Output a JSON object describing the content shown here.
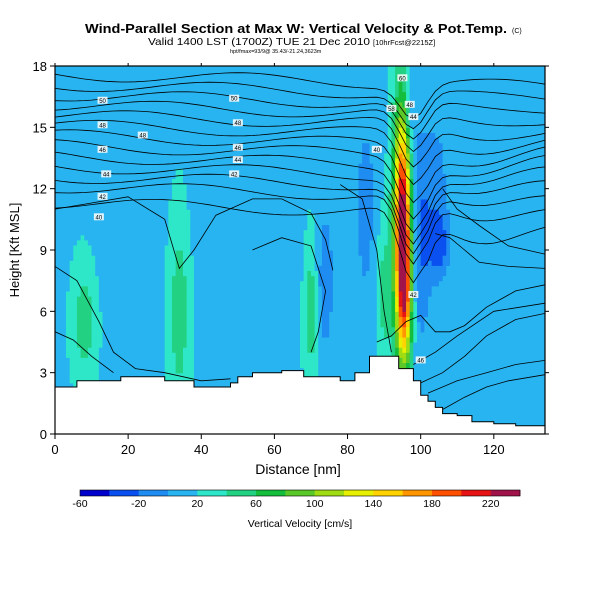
{
  "chart_data": {
    "type": "heatmap",
    "title": "Wind-Parallel Section at Max W: Vertical Velocity & Pot.Temp.",
    "title_mark": "(C)",
    "subtitle": "Valid 1400 LST (1700Z) TUE 21 Dec 2010",
    "subtitle_note": "[10hrFcst@2215Z]",
    "fine_print": "hpt/fmax=93/9@ 35.43/-21.24,3623m",
    "xlabel": "Distance [nm]",
    "ylabel": "Height [Kft MSL]",
    "xlim": [
      0,
      134
    ],
    "ylim": [
      0,
      18
    ],
    "x_ticks": [
      0,
      20,
      40,
      60,
      80,
      100,
      120
    ],
    "y_ticks": [
      0,
      3,
      6,
      9,
      12,
      15,
      18
    ],
    "colorbar": {
      "label": "Vertical Velocity [cm/s]",
      "tick_labels": [
        "-60",
        "-20",
        "20",
        "60",
        "100",
        "140",
        "180",
        "220"
      ],
      "bins": [
        -60,
        -40,
        -20,
        0,
        20,
        40,
        60,
        80,
        100,
        120,
        140,
        160,
        180,
        200,
        220,
        240
      ],
      "colors": [
        "#0000cc",
        "#0a50f0",
        "#1e8cf0",
        "#28b4f0",
        "#2ee6c8",
        "#22d282",
        "#14be3c",
        "#5ac828",
        "#a0dc14",
        "#e6f000",
        "#ffd200",
        "#ff9600",
        "#ff5000",
        "#e61414",
        "#a0144b"
      ]
    },
    "theta_labels": [
      "50",
      "48",
      "46",
      "44",
      "42",
      "40",
      "50",
      "48",
      "46",
      "44",
      "42",
      "48",
      "60",
      "58",
      "48",
      "44",
      "40",
      "42",
      "46"
    ],
    "terrain": [
      [
        0,
        2.3
      ],
      [
        6,
        2.3
      ],
      [
        6,
        2.6
      ],
      [
        18,
        2.6
      ],
      [
        18,
        2.8
      ],
      [
        30,
        2.8
      ],
      [
        30,
        2.6
      ],
      [
        38,
        2.6
      ],
      [
        38,
        2.3
      ],
      [
        48,
        2.3
      ],
      [
        48,
        2.5
      ],
      [
        50,
        2.5
      ],
      [
        50,
        2.8
      ],
      [
        54,
        2.8
      ],
      [
        54,
        3.0
      ],
      [
        62,
        3.0
      ],
      [
        62,
        3.1
      ],
      [
        68,
        3.1
      ],
      [
        68,
        2.8
      ],
      [
        78,
        2.8
      ],
      [
        78,
        2.6
      ],
      [
        82,
        2.6
      ],
      [
        82,
        3.0
      ],
      [
        86,
        3.0
      ],
      [
        86,
        3.8
      ],
      [
        94,
        3.8
      ],
      [
        94,
        3.2
      ],
      [
        98,
        3.2
      ],
      [
        98,
        2.6
      ],
      [
        100,
        2.6
      ],
      [
        100,
        1.9
      ],
      [
        102,
        1.9
      ],
      [
        102,
        1.6
      ],
      [
        104,
        1.6
      ],
      [
        104,
        1.3
      ],
      [
        106,
        1.3
      ],
      [
        106,
        1.0
      ],
      [
        110,
        1.0
      ],
      [
        110,
        0.9
      ],
      [
        114,
        0.9
      ],
      [
        114,
        0.6
      ],
      [
        120,
        0.6
      ],
      [
        120,
        0.5
      ],
      [
        126,
        0.5
      ],
      [
        126,
        0.4
      ],
      [
        134,
        0.4
      ]
    ],
    "w_features": [
      {
        "x": 95,
        "y": 10,
        "sx": 1.6,
        "sy": 4.2,
        "w": 230
      },
      {
        "x": 96,
        "y": 6.8,
        "sx": 1.2,
        "sy": 2.2,
        "w": 70
      },
      {
        "x": 100,
        "y": 9,
        "sx": 2.0,
        "sy": 3.5,
        "w": -35
      },
      {
        "x": 105,
        "y": 9.2,
        "sx": 2.0,
        "sy": 1.2,
        "w": -45
      },
      {
        "x": 104,
        "y": 12.5,
        "sx": 3.0,
        "sy": 2.5,
        "w": -25
      },
      {
        "x": 97,
        "y": 15.8,
        "sx": 1.5,
        "sy": 1.8,
        "w": -30
      },
      {
        "x": 74,
        "y": 7.5,
        "sx": 1.5,
        "sy": 2.5,
        "w": -35
      },
      {
        "x": 85,
        "y": 11,
        "sx": 2.5,
        "sy": 4.0,
        "w": -25
      },
      {
        "x": 34,
        "y": 6,
        "sx": 1.8,
        "sy": 3.0,
        "w": 38
      },
      {
        "x": 8,
        "y": 5.5,
        "sx": 2.0,
        "sy": 1.8,
        "w": 38
      },
      {
        "x": 70,
        "y": 6,
        "sx": 1.2,
        "sy": 2.5,
        "w": 34
      },
      {
        "x": 90,
        "y": 7,
        "sx": 1.5,
        "sy": 2.5,
        "w": 32
      },
      {
        "x": 45,
        "y": 11.5,
        "sx": 4.0,
        "sy": 3.5,
        "w": -15
      },
      {
        "x": 20,
        "y": 11,
        "sx": 5.0,
        "sy": 3.0,
        "w": -12
      },
      {
        "x": 60,
        "y": 12.5,
        "sx": 6.0,
        "sy": 3.0,
        "w": -10
      },
      {
        "x": 126,
        "y": 12,
        "sx": 5.0,
        "sy": 4.0,
        "w": -10
      }
    ]
  }
}
